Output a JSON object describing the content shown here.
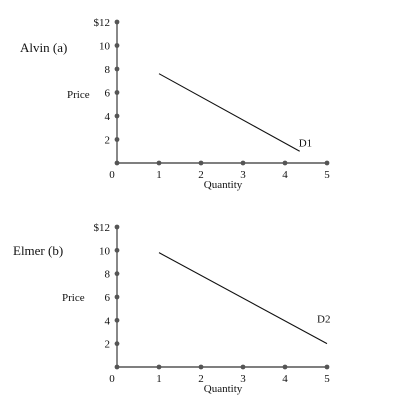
{
  "colors": {
    "axis": "#555555",
    "dot": "#555555",
    "line": "#111111",
    "text": "#111111"
  },
  "chart_data": [
    {
      "type": "line",
      "panel_label": "Alvin (a)",
      "xlabel": "Quantity",
      "ylabel": "Price",
      "xlim": [
        0,
        5
      ],
      "ylim": [
        0,
        12
      ],
      "x_ticks": [
        "0",
        "1",
        "2",
        "3",
        "4",
        "5"
      ],
      "y_ticks": [
        "2",
        "4",
        "6",
        "8",
        "10",
        "$12"
      ],
      "series": [
        {
          "name": "D1",
          "x": [
            1,
            4.35
          ],
          "y": [
            7.6,
            1.0
          ]
        }
      ]
    },
    {
      "type": "line",
      "panel_label": "Elmer (b)",
      "xlabel": "Quantity",
      "ylabel": "Price",
      "xlim": [
        0,
        5
      ],
      "ylim": [
        0,
        12
      ],
      "x_ticks": [
        "0",
        "1",
        "2",
        "3",
        "4",
        "5"
      ],
      "y_ticks": [
        "2",
        "4",
        "6",
        "8",
        "10",
        "$12"
      ],
      "series": [
        {
          "name": "D2",
          "x": [
            1,
            5
          ],
          "y": [
            9.8,
            2.0
          ]
        }
      ]
    }
  ]
}
